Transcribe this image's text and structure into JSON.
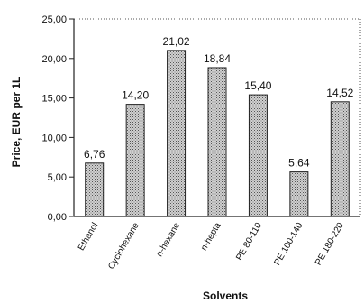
{
  "chart_data": {
    "type": "bar",
    "title": "",
    "xlabel": "Solvents",
    "ylabel": "Price, EUR per 1L",
    "categories": [
      "Ethanol",
      "Cyclohexane",
      "n-hexane",
      "n-hepta",
      "PE 80-110",
      "PE 100-140",
      "PE 180-220"
    ],
    "values": [
      6.76,
      14.2,
      21.02,
      18.84,
      15.4,
      5.64,
      14.52
    ],
    "value_labels": [
      "6,76",
      "14,20",
      "21,02",
      "18,84",
      "15,40",
      "5,64",
      "14,52"
    ],
    "ylim": [
      0,
      25
    ],
    "yticks": [
      0,
      5,
      10,
      15,
      20,
      25
    ],
    "ytick_labels": [
      "0,00",
      "5,00",
      "10,00",
      "15,00",
      "20,00",
      "25,00"
    ],
    "grid": false,
    "legend": "none",
    "colors": {
      "bar_fill": "#bdbdbd",
      "bar_stroke": "#222222",
      "axis": "#222222"
    }
  }
}
